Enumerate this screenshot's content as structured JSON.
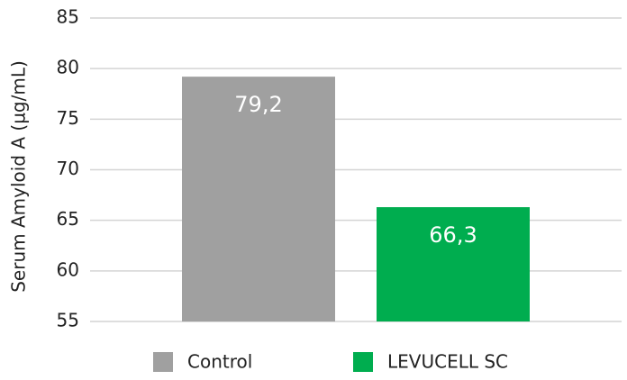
{
  "chart_data": {
    "type": "bar",
    "y_label": "Serum Amyloid A (µg/mL)",
    "series": [
      {
        "name": "Control",
        "color": "#a0a0a0",
        "values": [
          79.2
        ],
        "value_labels": [
          "79,2"
        ]
      },
      {
        "name": "LEVUCELL SC",
        "color": "#00ad4f",
        "values": [
          66.3
        ],
        "value_labels": [
          "66,3"
        ]
      }
    ],
    "ylim": [
      55,
      85
    ],
    "yticks": [
      55,
      60,
      65,
      70,
      75,
      80,
      85
    ],
    "grid": true,
    "legend": "bottom"
  }
}
